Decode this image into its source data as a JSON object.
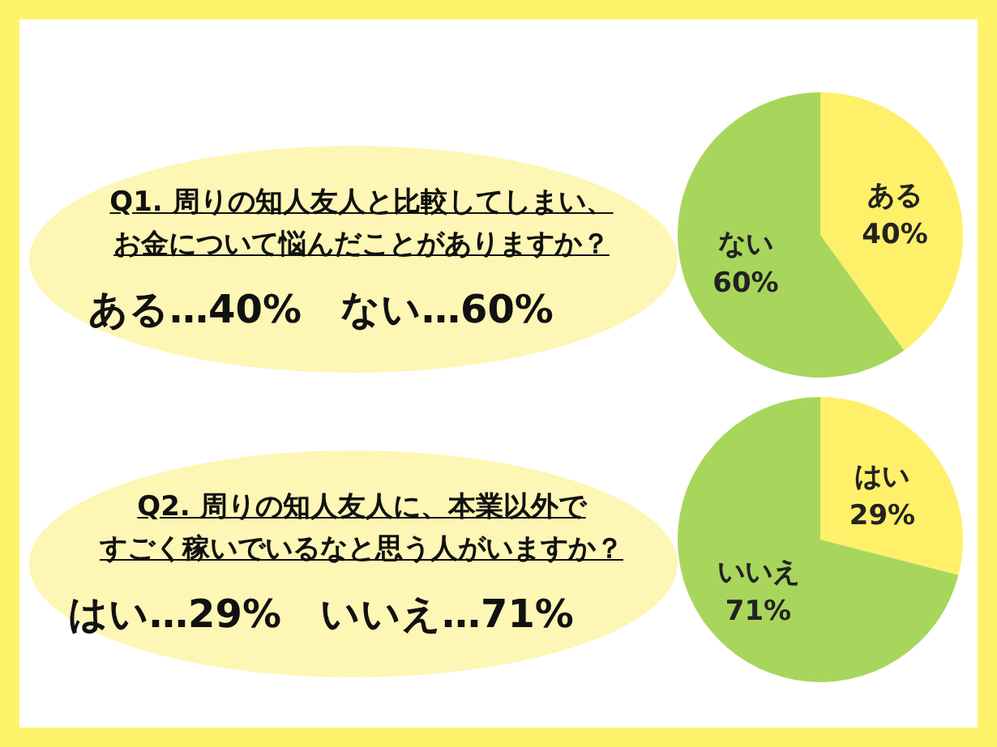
{
  "chart_data": [
    {
      "type": "pie",
      "title": "Q1. 周りの知人友人と比較してしまい、",
      "subtitle": "お金について悩んだことがありますか？",
      "categories": [
        "ある",
        "ない"
      ],
      "values": [
        40,
        60
      ],
      "value_labels": [
        "40%",
        "60%"
      ],
      "colors": [
        "#fff06a",
        "#a8d65c"
      ],
      "annotations": [
        "ある…40%　ない…60%"
      ]
    },
    {
      "type": "pie",
      "title": "Q2. 周りの知人友人に、本業以外で",
      "subtitle": "すごく稼いでいるなと思う人がいますか？",
      "categories": [
        "はい",
        "いいえ"
      ],
      "values": [
        29,
        71
      ],
      "value_labels": [
        "29%",
        "71%"
      ],
      "colors": [
        "#fff06a",
        "#a8d65c"
      ],
      "annotations": [
        "はい…29%　いいえ…71%"
      ]
    }
  ]
}
